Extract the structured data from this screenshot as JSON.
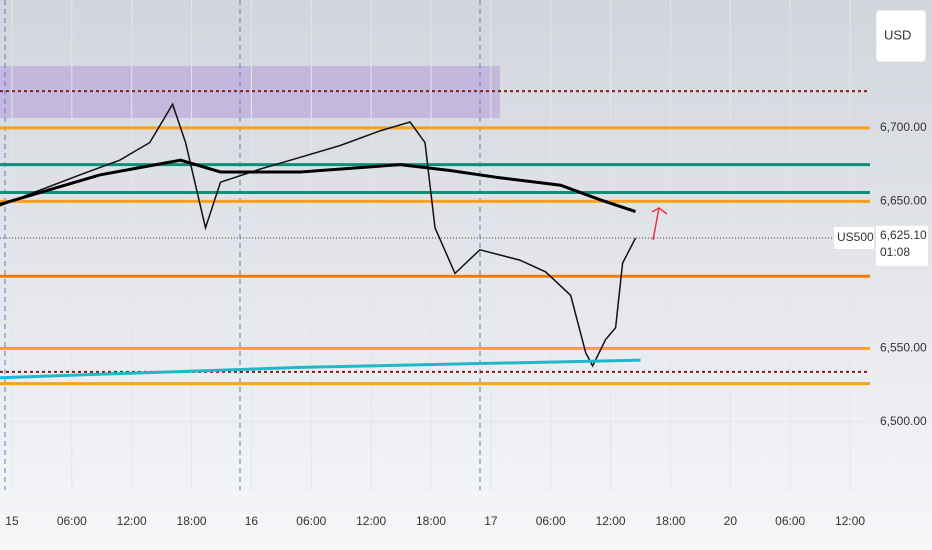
{
  "chart_data": {
    "type": "line",
    "currency": "USD",
    "symbol": "US500",
    "last_price": {
      "value": 6625.1,
      "label": "6,625.10"
    },
    "countdown": "01:08",
    "ylim": [
      6457,
      6787
    ],
    "yticks": [
      {
        "value": 6700,
        "label": "6,700.00"
      },
      {
        "value": 6650,
        "label": "6,650.00"
      },
      {
        "value": 6550,
        "label": "6,550.00"
      },
      {
        "value": 6500,
        "label": "6,500.00"
      }
    ],
    "xlim": [
      -1.2,
      86
    ],
    "xticks": [
      {
        "value": 0,
        "label": "15"
      },
      {
        "value": 6,
        "label": "06:00"
      },
      {
        "value": 12,
        "label": "12:00"
      },
      {
        "value": 18,
        "label": "18:00"
      },
      {
        "value": 24,
        "label": "16"
      },
      {
        "value": 30,
        "label": "06:00"
      },
      {
        "value": 36,
        "label": "12:00"
      },
      {
        "value": 42,
        "label": "18:00"
      },
      {
        "value": 48,
        "label": "17"
      },
      {
        "value": 54,
        "label": "06:00"
      },
      {
        "value": 60,
        "label": "12:00"
      },
      {
        "value": 66,
        "label": "18:00"
      },
      {
        "value": 72,
        "label": "20"
      },
      {
        "value": 78,
        "label": "06:00"
      },
      {
        "value": 84,
        "label": "12:00"
      }
    ],
    "grid": true,
    "series": [
      {
        "color": "#111111",
        "width": 1.5,
        "x": [
          -1.2,
          1.8,
          6.8,
          10.8,
          13.8,
          16.1,
          17.4,
          19.4,
          20.9,
          24.9,
          28.9,
          32.9,
          36.9,
          39.9,
          41.4,
          42.4,
          44.4,
          46.9,
          50.9,
          53.5,
          56.0,
          57.5,
          58.2,
          59.5,
          60.5,
          61.2,
          62.5
        ],
        "values": [
          6647,
          6655,
          6668,
          6678,
          6690,
          6716,
          6690,
          6632,
          6663,
          6672,
          6680,
          6688,
          6698,
          6704,
          6690,
          6632,
          6601,
          6617,
          6610,
          6602,
          6586,
          6547,
          6538,
          6556,
          6564,
          6608,
          6625
        ]
      },
      {
        "color": "#000000",
        "width": 3,
        "x": [
          -1.2,
          8.8,
          16.9,
          20.9,
          28.9,
          38.9,
          43.9,
          48.9,
          55.0,
          59.0,
          62.5
        ],
        "values": [
          6648,
          6668,
          6678,
          6670,
          6670,
          6675,
          6671,
          6666,
          6661,
          6651,
          6643
        ]
      },
      {
        "color": "#1fb8c9",
        "width": 3,
        "x": [
          -1.2,
          28.9,
          63.0
        ],
        "values": [
          6530,
          6537,
          6542
        ]
      }
    ],
    "levels": [
      {
        "value": 6725,
        "color": "#8b1a1a",
        "dash": true
      },
      {
        "value": 6700,
        "color": "#f7a21b",
        "dash": false
      },
      {
        "value": 6675,
        "color": "#0f8f7a",
        "dash": false
      },
      {
        "value": 6656,
        "color": "#0f8f7a",
        "dash": false
      },
      {
        "value": 6650,
        "color": "#f7a21b",
        "dash": false
      },
      {
        "value": 6599,
        "color": "#f57c00",
        "dash": false
      },
      {
        "value": 6550,
        "color": "#f7a21b",
        "dash": false
      },
      {
        "value": 6534,
        "color": "#8b1a1a",
        "dash": true
      },
      {
        "value": 6526,
        "color": "#f7a21b",
        "dash": false
      }
    ]
  }
}
